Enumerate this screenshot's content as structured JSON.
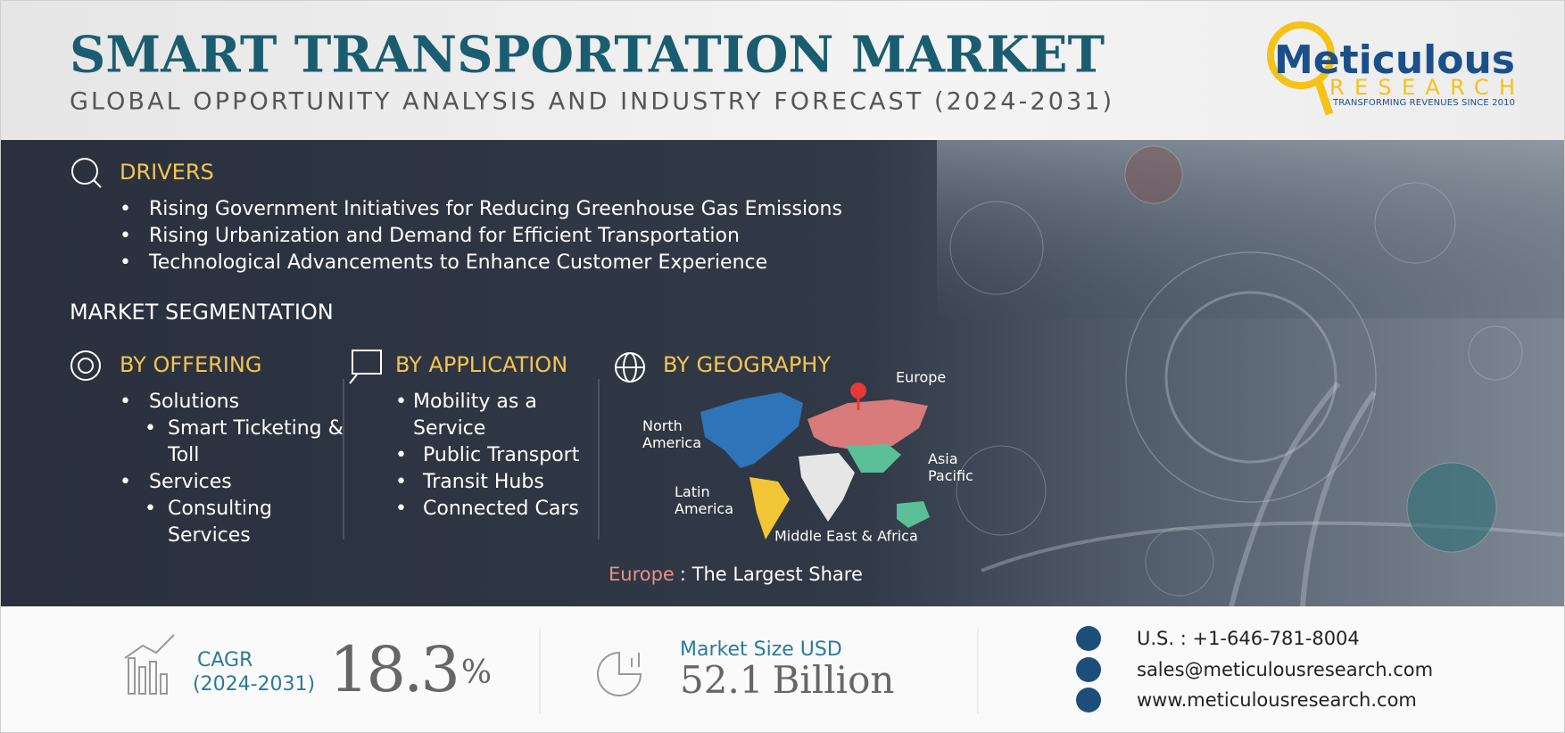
{
  "header": {
    "title": "SMART TRANSPORTATION MARKET",
    "subtitle": "GLOBAL OPPORTUNITY ANALYSIS AND INDUSTRY FORECAST (2024-2031)"
  },
  "logo": {
    "name": "Meticulous",
    "word2": "RESEARCH",
    "tagline": "TRANSFORMING REVENUES SINCE 2010"
  },
  "drivers": {
    "heading": "DRIVERS",
    "items": [
      "Rising Government Initiatives for Reducing Greenhouse Gas Emissions",
      "Rising Urbanization and Demand for Efficient Transportation",
      "Technological Advancements to Enhance Customer Experience"
    ]
  },
  "segmentation": {
    "heading": "MARKET SEGMENTATION",
    "offering": {
      "heading": "BY OFFERING",
      "items": [
        {
          "text": "Solutions",
          "subitems": [
            "Smart Ticketing & Toll"
          ]
        },
        {
          "text": "Services",
          "subitems": [
            "Consulting Services"
          ]
        }
      ]
    },
    "application": {
      "heading": "BY APPLICATION",
      "items": [
        "Mobility as a Service",
        "Public Transport",
        "Transit Hubs",
        "Connected Cars"
      ]
    },
    "geography": {
      "heading": "BY GEOGRAPHY",
      "regions": [
        "North America",
        "Europe",
        "Asia Pacific",
        "Latin America",
        "Middle East & Africa"
      ],
      "highlight_region": "Europe",
      "highlight_text": ": The Largest Share"
    }
  },
  "stats": {
    "cagr_label": "CAGR",
    "cagr_period": "(2024-2031)",
    "cagr_value": 18.3,
    "cagr_unit": "%",
    "market_label": "Market Size USD",
    "market_value": 52.1,
    "market_unit": "Billion"
  },
  "contact": {
    "phone": "U.S. : +1-646-781-8004",
    "email": "sales@meticulousresearch.com",
    "website": "www.meticulousresearch.com"
  }
}
